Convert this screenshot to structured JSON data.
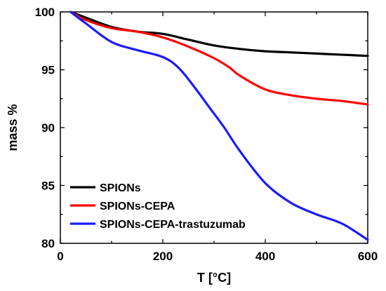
{
  "chart_data": {
    "type": "line",
    "xlabel": "T [°C]",
    "ylabel": "mass %",
    "xlim": [
      0,
      600
    ],
    "ylim": [
      80,
      100
    ],
    "xticks": [
      0,
      200,
      400,
      600
    ],
    "yticks": [
      80,
      85,
      90,
      95,
      100
    ],
    "grid": false,
    "legend_position": "bottom-left",
    "series": [
      {
        "name": "SPIONs",
        "color": "#000000",
        "x": [
          20,
          50,
          100,
          150,
          200,
          250,
          300,
          350,
          400,
          450,
          500,
          550,
          600
        ],
        "y": [
          100,
          99.5,
          98.7,
          98.3,
          98.1,
          97.6,
          97.1,
          96.8,
          96.6,
          96.5,
          96.4,
          96.3,
          96.2
        ]
      },
      {
        "name": "SPIONs-CEPA",
        "color": "#ff0000",
        "x": [
          20,
          50,
          100,
          150,
          200,
          250,
          300,
          330,
          350,
          400,
          450,
          500,
          550,
          600
        ],
        "y": [
          100,
          99.3,
          98.6,
          98.3,
          97.8,
          97.0,
          96.0,
          95.2,
          94.5,
          93.3,
          92.8,
          92.5,
          92.3,
          92.0
        ]
      },
      {
        "name": "SPIONs-CEPA-trastuzumab",
        "color": "#1a1aff",
        "x": [
          20,
          50,
          100,
          150,
          200,
          230,
          260,
          290,
          320,
          350,
          400,
          450,
          500,
          550,
          600
        ],
        "y": [
          100,
          99.0,
          97.4,
          96.7,
          96.1,
          95.2,
          93.6,
          91.8,
          90.0,
          88.0,
          85.2,
          83.5,
          82.5,
          81.7,
          80.3
        ]
      }
    ]
  }
}
